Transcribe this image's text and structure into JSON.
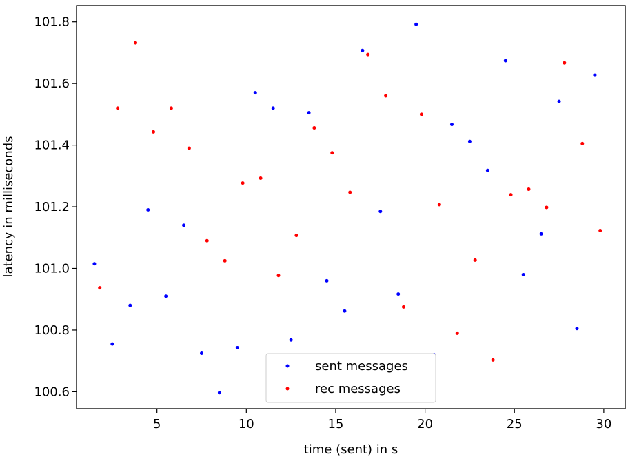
{
  "chart_data": {
    "type": "scatter",
    "title": "",
    "xlabel": "time (sent) in s",
    "ylabel": "latency in milliseconds",
    "xlim": [
      0.5,
      31.2
    ],
    "ylim": [
      100.545,
      101.853
    ],
    "xticks": [
      5,
      10,
      15,
      20,
      25,
      30
    ],
    "yticks": [
      100.6,
      100.8,
      101.0,
      101.2,
      101.4,
      101.6,
      101.8
    ],
    "ytick_labels": [
      "100.6",
      "100.8",
      "101.0",
      "101.2",
      "101.4",
      "101.6",
      "101.8"
    ],
    "grid": false,
    "legend_position": "bottom-center",
    "series": [
      {
        "name": "sent messages",
        "color": "#0000ff",
        "x": [
          1.5,
          2.5,
          3.5,
          4.5,
          5.5,
          6.5,
          7.5,
          8.5,
          9.5,
          10.5,
          11.5,
          12.5,
          13.5,
          14.5,
          15.5,
          16.5,
          17.5,
          18.5,
          19.5,
          20.5,
          21.5,
          22.5,
          23.5,
          24.5,
          25.5,
          26.5,
          27.5,
          28.5,
          29.5
        ],
        "y": [
          101.015,
          100.755,
          100.88,
          101.19,
          100.91,
          101.14,
          100.725,
          100.597,
          100.743,
          101.57,
          101.52,
          100.768,
          101.505,
          100.96,
          100.862,
          101.707,
          101.185,
          100.917,
          101.792,
          100.72,
          101.467,
          101.412,
          101.318,
          101.674,
          100.98,
          101.112,
          101.542,
          100.805,
          101.627
        ]
      },
      {
        "name": "rec messages",
        "color": "#ff0000",
        "x": [
          1.8,
          2.8,
          3.8,
          4.8,
          5.8,
          6.8,
          7.8,
          8.8,
          9.8,
          10.8,
          11.8,
          12.8,
          13.8,
          14.8,
          15.8,
          16.8,
          17.8,
          18.8,
          19.8,
          20.8,
          21.8,
          22.8,
          23.8,
          24.8,
          25.8,
          26.8,
          27.8,
          28.8,
          29.8
        ],
        "y": [
          100.937,
          101.52,
          101.732,
          101.443,
          101.52,
          101.39,
          101.09,
          101.025,
          101.277,
          101.293,
          100.977,
          101.107,
          101.456,
          101.375,
          101.247,
          101.694,
          101.56,
          100.875,
          101.5,
          101.207,
          100.79,
          101.027,
          100.703,
          101.239,
          101.257,
          101.198,
          101.667,
          101.405,
          101.123
        ]
      }
    ]
  }
}
